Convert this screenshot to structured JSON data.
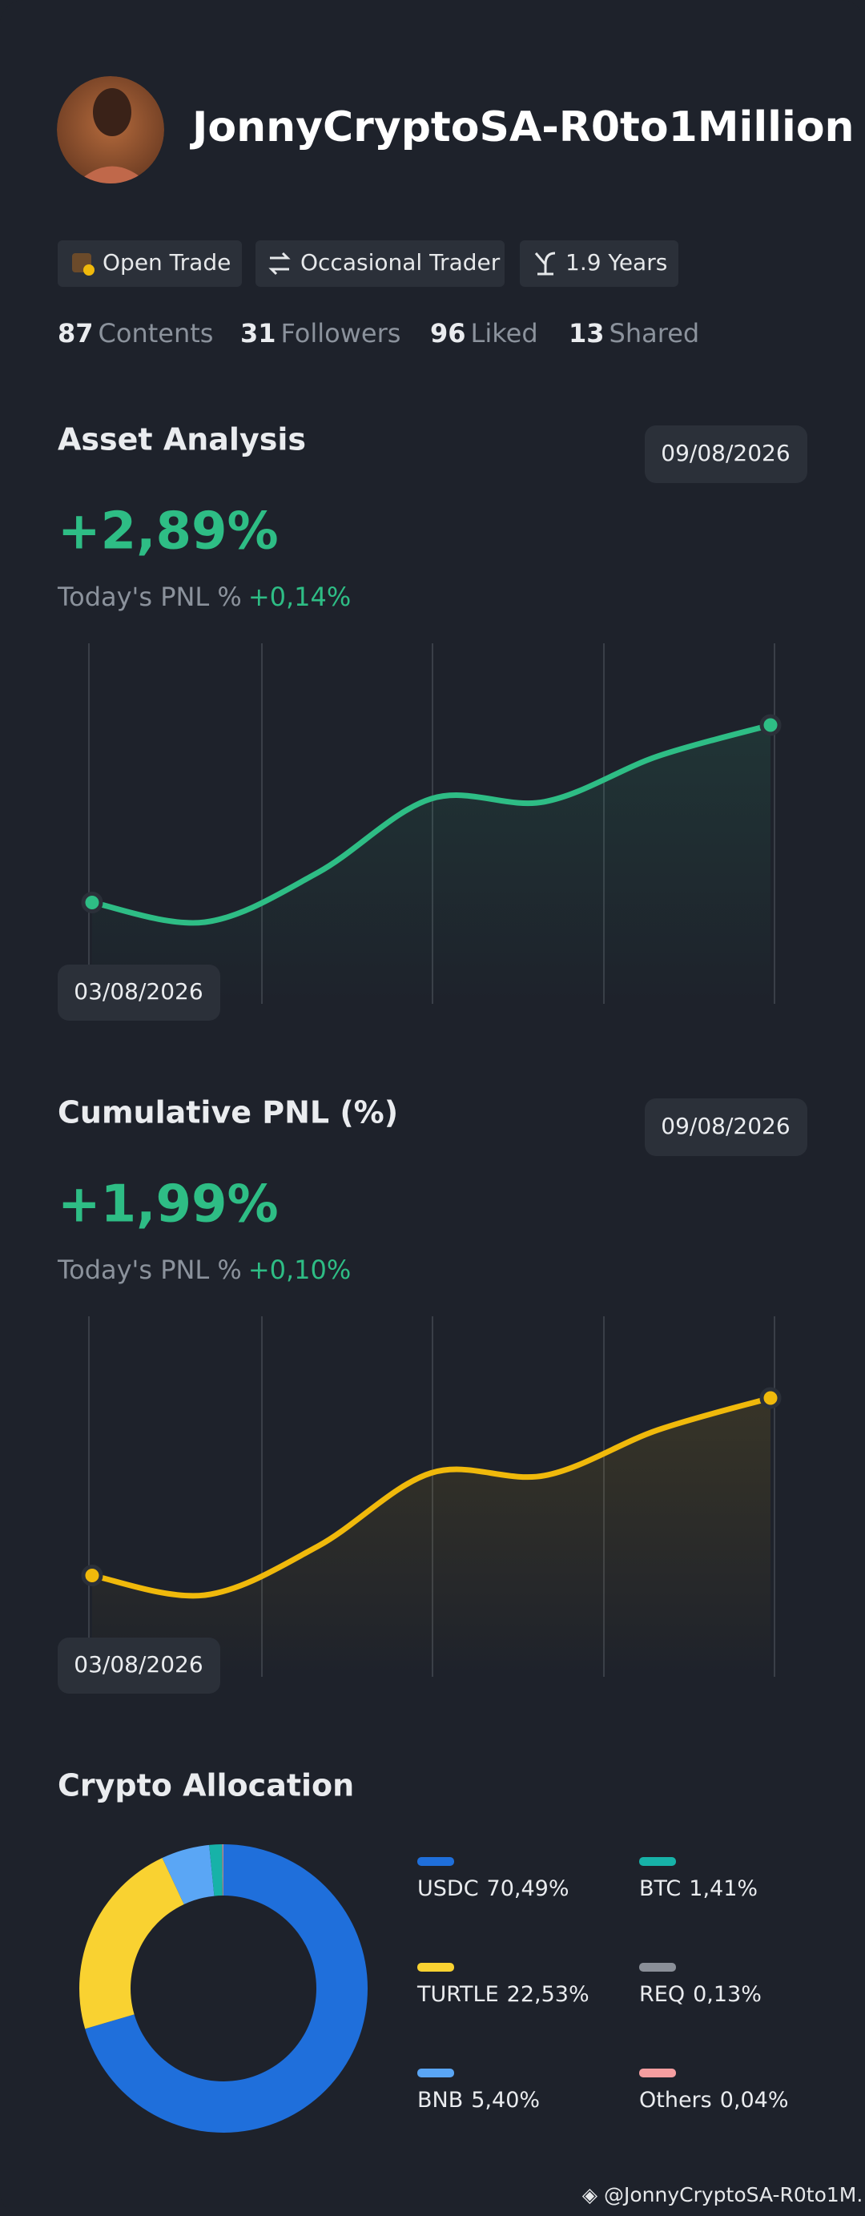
{
  "profile": {
    "name": "JonnyCryptoSA-R0to1Million",
    "badges": [
      "Open Trade",
      "Occasional Trader",
      "1.9 Years"
    ],
    "stats": [
      {
        "value": 87,
        "label": "Contents"
      },
      {
        "value": 31,
        "label": "Followers"
      },
      {
        "value": 96,
        "label": "Liked"
      },
      {
        "value": 13,
        "label": "Shared"
      }
    ]
  },
  "chart_data": [
    {
      "type": "line",
      "title": "Asset Analysis",
      "headline": "+2,89%",
      "pnl_label": "Today's PNL %",
      "pnl_value": "+0,14%",
      "categories": [
        "03/08/2026",
        null,
        null,
        null,
        null,
        null,
        "09/08/2026"
      ],
      "values": [
        0,
        -0.32,
        0.49,
        1.69,
        1.64,
        2.38,
        2.89
      ],
      "color": "#2ebd85"
    },
    {
      "type": "line",
      "title": "Cumulative PNL (%)",
      "headline": "+1,99%",
      "pnl_label": "Today's PNL %",
      "pnl_value": "+0,10%",
      "categories": [
        "03/08/2026",
        null,
        null,
        null,
        null,
        null,
        "09/08/2026"
      ],
      "values": [
        0,
        -0.22,
        0.33,
        1.15,
        1.12,
        1.63,
        1.99
      ],
      "color": "#f0b90b"
    },
    {
      "type": "pie",
      "title": "Crypto Allocation",
      "categories": [
        "USDC",
        "TURTLE",
        "BNB",
        "BTC",
        "REQ",
        "Others"
      ],
      "values": [
        70.49,
        22.53,
        5.4,
        1.41,
        0.13,
        0.04
      ],
      "value_labels": [
        "70,49%",
        "22,53%",
        "5,40%",
        "1,41%",
        "0,13%",
        "0,04%"
      ],
      "colors": [
        "#1f6fdb",
        "#f9d231",
        "#5aa6f5",
        "#17b2a8",
        "#8a8f98",
        "#f59ea0"
      ]
    }
  ],
  "footer": "@JonnyCryptoSA-R0to1M..."
}
